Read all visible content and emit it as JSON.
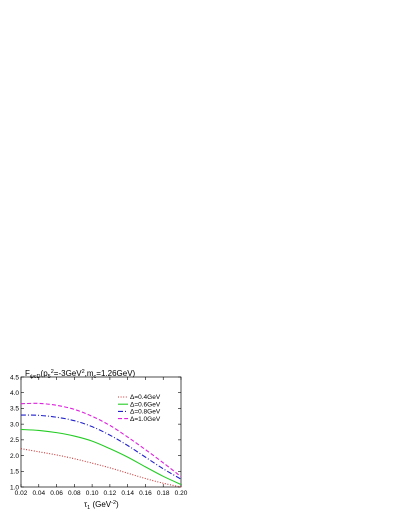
{
  "chart_data": {
    "type": "line",
    "title": {
      "base": "F",
      "base_sub": "ψcD",
      "open": "(p",
      "p_sub": "5",
      "p_sup": "2",
      "mid": "=-3GeV",
      "mid_sup": "2",
      "comma": ",m",
      "m_sub": "c",
      "tail": "=1.26GeV)"
    },
    "xlabel": {
      "base": "τ",
      "base_sub": "1",
      "unit_open": " (GeV",
      "unit_sup": "-2",
      "unit_close": ")"
    },
    "ylabel": "",
    "xlim": [
      0.02,
      0.2
    ],
    "ylim": [
      1.0,
      4.5
    ],
    "xticks": [
      "0.02",
      "0.04",
      "0.06",
      "0.08",
      "0.10",
      "0.12",
      "0.14",
      "0.16",
      "0.18",
      "0.20"
    ],
    "yticks": [
      "1.0",
      "1.5",
      "2.0",
      "2.5",
      "3.0",
      "3.5",
      "4.0",
      "4.5"
    ],
    "legend_position": "top-right",
    "x": [
      0.02,
      0.04,
      0.06,
      0.08,
      0.1,
      0.12,
      0.14,
      0.16,
      0.18,
      0.2
    ],
    "series": [
      {
        "name": "Δ=0.4GeV",
        "color": "#cc3333",
        "dash": "dotted",
        "values": [
          2.22,
          2.12,
          2.02,
          1.9,
          1.76,
          1.61,
          1.44,
          1.27,
          1.12,
          1.0
        ]
      },
      {
        "name": "Δ=0.6GeV",
        "color": "#22cc22",
        "dash": "solid",
        "values": [
          2.83,
          2.8,
          2.73,
          2.62,
          2.46,
          2.22,
          1.95,
          1.64,
          1.34,
          1.08
        ]
      },
      {
        "name": "Δ=0.8GeV",
        "color": "#2222cc",
        "dash": "dashdot",
        "values": [
          3.29,
          3.28,
          3.22,
          3.11,
          2.92,
          2.65,
          2.32,
          1.95,
          1.58,
          1.25
        ]
      },
      {
        "name": "Δ=1.0GeV",
        "color": "#dd22dd",
        "dash": "dashed",
        "values": [
          3.65,
          3.66,
          3.6,
          3.47,
          3.25,
          2.96,
          2.59,
          2.19,
          1.77,
          1.33
        ]
      }
    ],
    "grid": false
  }
}
